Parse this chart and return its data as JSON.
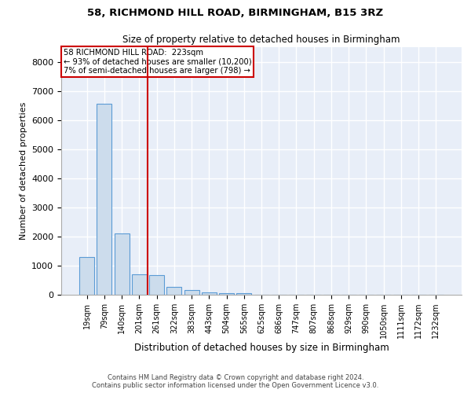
{
  "title": "58, RICHMOND HILL ROAD, BIRMINGHAM, B15 3RZ",
  "subtitle": "Size of property relative to detached houses in Birmingham",
  "xlabel": "Distribution of detached houses by size in Birmingham",
  "ylabel": "Number of detached properties",
  "footer_line1": "Contains HM Land Registry data © Crown copyright and database right 2024.",
  "footer_line2": "Contains public sector information licensed under the Open Government Licence v3.0.",
  "bin_labels": [
    "19sqm",
    "79sqm",
    "140sqm",
    "201sqm",
    "261sqm",
    "322sqm",
    "383sqm",
    "443sqm",
    "504sqm",
    "565sqm",
    "625sqm",
    "686sqm",
    "747sqm",
    "807sqm",
    "868sqm",
    "929sqm",
    "990sqm",
    "1050sqm",
    "1111sqm",
    "1172sqm",
    "1232sqm"
  ],
  "bar_heights": [
    1300,
    6550,
    2100,
    700,
    680,
    280,
    150,
    90,
    50,
    50,
    0,
    0,
    0,
    0,
    0,
    0,
    0,
    0,
    0,
    0,
    0
  ],
  "bar_color": "#ccdcec",
  "bar_edge_color": "#5b9bd5",
  "background_color": "#e8eef8",
  "grid_color": "#ffffff",
  "red_line_x": 3.5,
  "annotation_line1": "58 RICHMOND HILL ROAD:  223sqm",
  "annotation_line2": "← 93% of detached houses are smaller (10,200)",
  "annotation_line3": "7% of semi-detached houses are larger (798) →",
  "annotation_box_color": "#ffffff",
  "annotation_border_color": "#cc0000",
  "ylim": [
    0,
    8500
  ],
  "yticks": [
    0,
    1000,
    2000,
    3000,
    4000,
    5000,
    6000,
    7000,
    8000
  ]
}
